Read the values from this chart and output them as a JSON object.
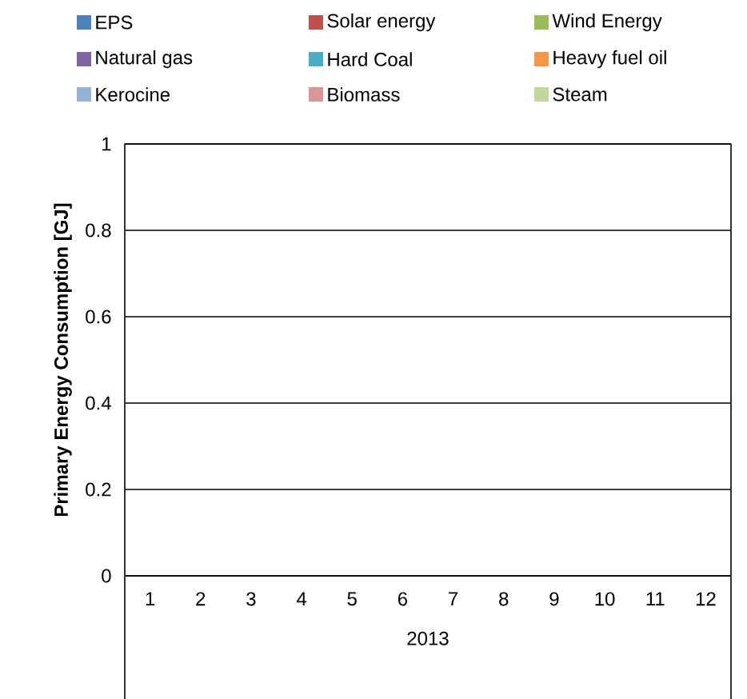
{
  "chart_data": {
    "type": "bar",
    "ylabel": "Primary Energy Consumption [GJ]",
    "xlabel": "2013",
    "categories": [
      "1",
      "2",
      "3",
      "4",
      "5",
      "6",
      "7",
      "8",
      "9",
      "10",
      "11",
      "12"
    ],
    "series": [
      {
        "name": "EPS",
        "color": "#4f81bd",
        "values": [
          null,
          null,
          null,
          null,
          null,
          null,
          null,
          null,
          null,
          null,
          null,
          null
        ]
      },
      {
        "name": "Solar energy",
        "color": "#c0504d",
        "values": [
          null,
          null,
          null,
          null,
          null,
          null,
          null,
          null,
          null,
          null,
          null,
          null
        ]
      },
      {
        "name": "Wind Energy",
        "color": "#9bbb59",
        "values": [
          null,
          null,
          null,
          null,
          null,
          null,
          null,
          null,
          null,
          null,
          null,
          null
        ]
      },
      {
        "name": "Natural gas",
        "color": "#8064a2",
        "values": [
          null,
          null,
          null,
          null,
          null,
          null,
          null,
          null,
          null,
          null,
          null,
          null
        ]
      },
      {
        "name": "Hard Coal",
        "color": "#4bacc6",
        "values": [
          null,
          null,
          null,
          null,
          null,
          null,
          null,
          null,
          null,
          null,
          null,
          null
        ]
      },
      {
        "name": "Heavy fuel oil",
        "color": "#f79646",
        "values": [
          null,
          null,
          null,
          null,
          null,
          null,
          null,
          null,
          null,
          null,
          null,
          null
        ]
      },
      {
        "name": "Kerocine",
        "color": "#95b3d7",
        "values": [
          null,
          null,
          null,
          null,
          null,
          null,
          null,
          null,
          null,
          null,
          null,
          null
        ]
      },
      {
        "name": "Biomass",
        "color": "#d99694",
        "values": [
          null,
          null,
          null,
          null,
          null,
          null,
          null,
          null,
          null,
          null,
          null,
          null
        ]
      },
      {
        "name": "Steam",
        "color": "#c3d69b",
        "values": [
          null,
          null,
          null,
          null,
          null,
          null,
          null,
          null,
          null,
          null,
          null,
          null
        ]
      }
    ],
    "ylim": [
      0,
      1
    ],
    "yticks": [
      0,
      0.2,
      0.4,
      0.6,
      0.8,
      1
    ],
    "grid": "y",
    "legend": "top"
  }
}
